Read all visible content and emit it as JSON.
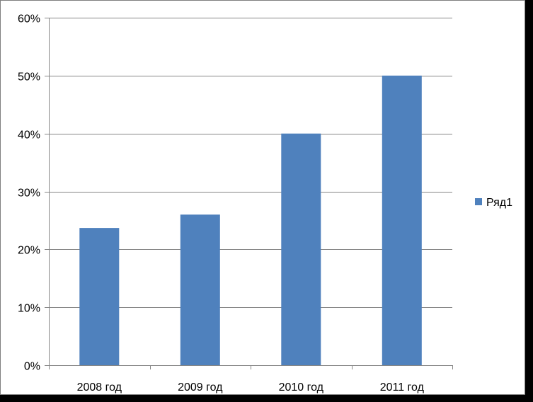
{
  "chart_data": {
    "type": "bar",
    "categories": [
      "2008 год",
      "2009 год",
      "2010 год",
      "2011 год"
    ],
    "series": [
      {
        "name": "Ряд1",
        "values": [
          0.237,
          0.26,
          0.4,
          0.5
        ],
        "color": "#4f81bd"
      }
    ],
    "ylim": [
      0,
      0.6
    ],
    "yticks": [
      0,
      0.1,
      0.2,
      0.3,
      0.4,
      0.5,
      0.6
    ],
    "ytick_labels": [
      "0%",
      "10%",
      "20%",
      "30%",
      "40%",
      "50%",
      "60%"
    ],
    "grid": true,
    "legend_position": "right",
    "title": "",
    "xlabel": "",
    "ylabel": ""
  }
}
